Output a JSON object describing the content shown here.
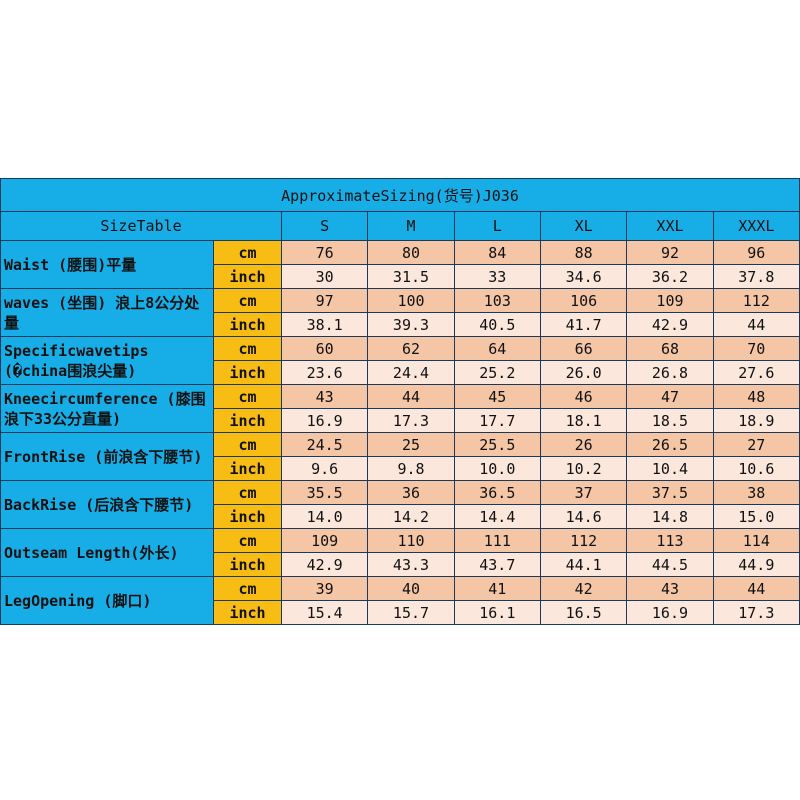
{
  "title": "ApproximateSizing(货号)J036",
  "header_label": "SizeTable",
  "sizes": [
    "S",
    "M",
    "L",
    "XL",
    "XXL",
    "XXXL"
  ],
  "units": {
    "cm": "cm",
    "inch": "inch"
  },
  "rows": [
    {
      "label": "Waist (腰围)平量",
      "cm": [
        "76",
        "80",
        "84",
        "88",
        "92",
        "96"
      ],
      "inch": [
        "30",
        "31.5",
        "33",
        "34.6",
        "36.2",
        "37.8"
      ]
    },
    {
      "label": "waves (坐围) 浪上8公分处量",
      "cm": [
        "97",
        "100",
        "103",
        "106",
        "109",
        "112"
      ],
      "inch": [
        "38.1",
        "39.3",
        "40.5",
        "41.7",
        "42.9",
        "44"
      ]
    },
    {
      "label": "Specificwavetips (�china围浪尖量)",
      "cm": [
        "60",
        "62",
        "64",
        "66",
        "68",
        "70"
      ],
      "inch": [
        "23.6",
        "24.4",
        "25.2",
        "26.0",
        "26.8",
        "27.6"
      ]
    },
    {
      "label": "Kneecircumference (膝围浪下33公分直量)",
      "cm": [
        "43",
        "44",
        "45",
        "46",
        "47",
        "48"
      ],
      "inch": [
        "16.9",
        "17.3",
        "17.7",
        "18.1",
        "18.5",
        "18.9"
      ]
    },
    {
      "label": "FrontRise (前浪含下腰节)",
      "cm": [
        "24.5",
        "25",
        "25.5",
        "26",
        "26.5",
        "27"
      ],
      "inch": [
        "9.6",
        "9.8",
        "10.0",
        "10.2",
        "10.4",
        "10.6"
      ]
    },
    {
      "label": "BackRise (后浪含下腰节)",
      "cm": [
        "35.5",
        "36",
        "36.5",
        "37",
        "37.5",
        "38"
      ],
      "inch": [
        "14.0",
        "14.2",
        "14.4",
        "14.6",
        "14.8",
        "15.0"
      ]
    },
    {
      "label": "Outseam Length(外长)",
      "cm": [
        "109",
        "110",
        "111",
        "112",
        "113",
        "114"
      ],
      "inch": [
        "42.9",
        "43.3",
        "43.7",
        "44.1",
        "44.5",
        "44.9"
      ]
    },
    {
      "label": "LegOpening (脚口)",
      "cm": [
        "39",
        "40",
        "41",
        "42",
        "43",
        "44"
      ],
      "inch": [
        "15.4",
        "15.7",
        "16.1",
        "16.5",
        "16.9",
        "17.3"
      ]
    }
  ],
  "colors": {
    "header_blue": "#17aee8",
    "unit_orange": "#f8bd14",
    "cm_cell": "#f5c6a6",
    "inch_cell": "#fbe7db"
  }
}
